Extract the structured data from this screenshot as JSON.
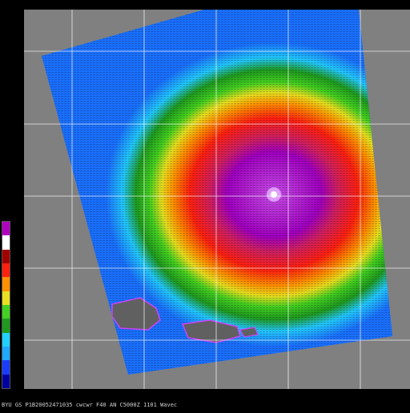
{
  "caption": "BYU  GS  P1B20052471035 cwcwr F40 AN C5000Z 1101 Wavec",
  "colors": {
    "land": "#606060",
    "background": "#808080",
    "grid": "#ffffff",
    "palette": [
      "#0000a0",
      "#1a3cff",
      "#1fa8ff",
      "#22d0ff",
      "#1f9a1f",
      "#44d020",
      "#e8e020",
      "#ff9000",
      "#ff2010",
      "#a00000",
      "#ffffff",
      "#b000c0"
    ]
  },
  "icons": {
    "storm_eye": "hurricane-eye-icon"
  }
}
